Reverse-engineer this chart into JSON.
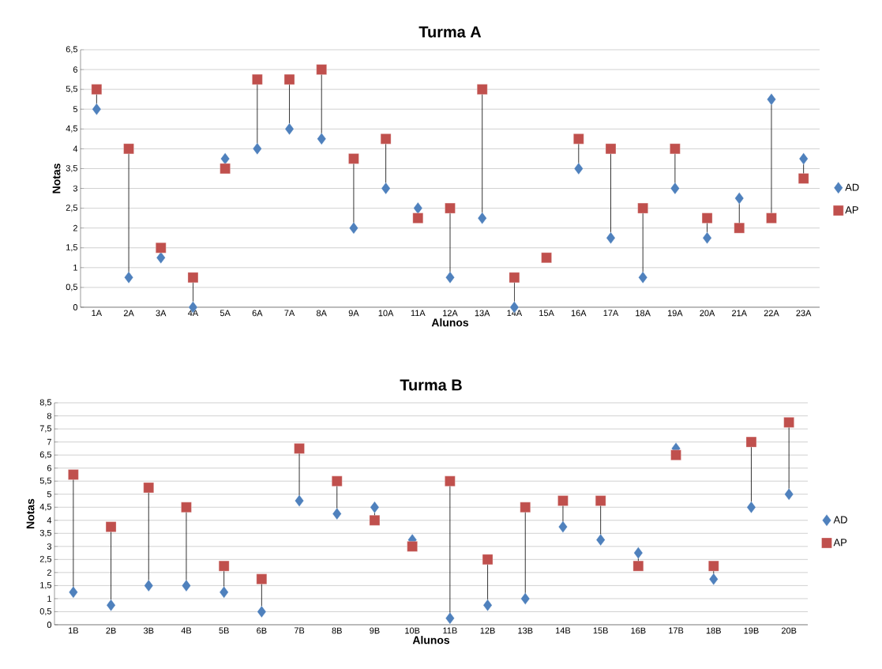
{
  "chart_data": [
    {
      "type": "scatter",
      "title": "Turma A",
      "xlabel": "Alunos",
      "ylabel": "Notas",
      "categories": [
        "1A",
        "2A",
        "3A",
        "4A",
        "5A",
        "6A",
        "7A",
        "8A",
        "9A",
        "10A",
        "11A",
        "12A",
        "13A",
        "14A",
        "15A",
        "16A",
        "17A",
        "18A",
        "19A",
        "20A",
        "21A",
        "22A",
        "23A"
      ],
      "series": [
        {
          "name": "AD",
          "color": "#4f81bd",
          "marker": "diamond",
          "values": [
            5,
            0.75,
            1.25,
            0,
            3.75,
            4,
            4.5,
            4.25,
            2,
            3,
            2.5,
            0.75,
            2.25,
            0,
            null,
            3.5,
            1.75,
            0.75,
            3,
            1.75,
            2.75,
            5.25,
            3.75
          ]
        },
        {
          "name": "AP",
          "color": "#c0504d",
          "marker": "square",
          "values": [
            5.5,
            4,
            1.5,
            0.75,
            3.5,
            5.75,
            5.75,
            6,
            3.75,
            4.25,
            2.25,
            2.5,
            5.5,
            0.75,
            1.25,
            4.25,
            4,
            2.5,
            4,
            2.25,
            2,
            2.25,
            3.25
          ]
        }
      ],
      "ylim": [
        0,
        6.5
      ],
      "yticks": [
        0,
        {
          "value": 0.5,
          "label": "0,5"
        },
        1,
        {
          "value": 1.5,
          "label": "1,5"
        },
        2,
        {
          "value": 2.5,
          "label": "2,5"
        },
        3,
        {
          "value": 3.5,
          "label": "3,5"
        },
        4,
        {
          "value": 4.5,
          "label": "4,5"
        },
        5,
        {
          "value": 5.5,
          "label": "5,5"
        },
        6,
        {
          "value": 6.5,
          "label": "6,5"
        }
      ],
      "grid": "y",
      "legend": "right"
    },
    {
      "type": "scatter",
      "title": "Turma B",
      "xlabel": "Alunos",
      "ylabel": "Notas",
      "categories": [
        "1B",
        "2B",
        "3B",
        "4B",
        "5B",
        "6B",
        "7B",
        "8B",
        "9B",
        "10B",
        "11B",
        "12B",
        "13B",
        "14B",
        "15B",
        "16B",
        "17B",
        "18B",
        "19B",
        "20B"
      ],
      "series": [
        {
          "name": "AD",
          "color": "#4f81bd",
          "marker": "diamond",
          "values": [
            1.25,
            0.75,
            1.5,
            1.5,
            1.25,
            0.5,
            4.75,
            4.25,
            4.5,
            3.25,
            0.25,
            0.75,
            1,
            3.75,
            3.25,
            2.75,
            6.75,
            1.75,
            4.5,
            5
          ]
        },
        {
          "name": "AP",
          "color": "#c0504d",
          "marker": "square",
          "values": [
            5.75,
            3.75,
            5.25,
            4.5,
            2.25,
            1.75,
            6.75,
            5.5,
            4,
            3,
            5.5,
            2.5,
            4.5,
            4.75,
            4.75,
            2.25,
            6.5,
            2.25,
            7,
            7.75
          ]
        }
      ],
      "ylim": [
        0,
        8.5
      ],
      "yticks": [
        0,
        {
          "value": 0.5,
          "label": "0,5"
        },
        1,
        {
          "value": 1.5,
          "label": "1,5"
        },
        2,
        {
          "value": 2.5,
          "label": "2,5"
        },
        3,
        {
          "value": 3.5,
          "label": "3,5"
        },
        4,
        {
          "value": 4.5,
          "label": "4,5"
        },
        5,
        {
          "value": 5.5,
          "label": "5,5"
        },
        6,
        {
          "value": 6.5,
          "label": "6,5"
        },
        7,
        {
          "value": 7.5,
          "label": "7,5"
        },
        8,
        {
          "value": 8.5,
          "label": "8,5"
        }
      ],
      "grid": "y",
      "legend": "right"
    }
  ]
}
